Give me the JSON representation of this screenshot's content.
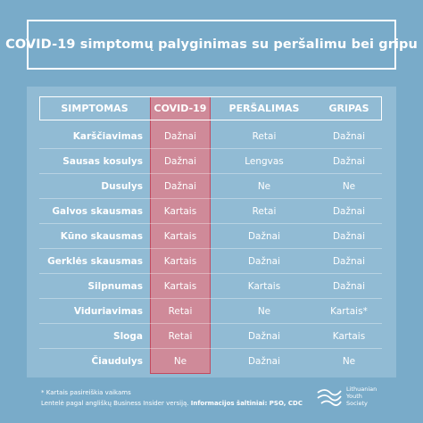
{
  "title": "COVID-19 simptomų palyginimas su peršalimu bei gripu",
  "table": {
    "headers": [
      "SIMPTOMAS",
      "COVID-19",
      "PERŠALIMAS",
      "GRIPAS"
    ],
    "rows": [
      {
        "symptom": "Karščiavimas",
        "covid": "Dažnai",
        "cold": "Retai",
        "flu": "Dažnai"
      },
      {
        "symptom": "Sausas kosulys",
        "covid": "Dažnai",
        "cold": "Lengvas",
        "flu": "Dažnai"
      },
      {
        "symptom": "Dusulys",
        "covid": "Dažnai",
        "cold": "Ne",
        "flu": "Ne"
      },
      {
        "symptom": "Galvos skausmas",
        "covid": "Kartais",
        "cold": "Retai",
        "flu": "Dažnai"
      },
      {
        "symptom": "Kūno skausmas",
        "covid": "Kartais",
        "cold": "Dažnai",
        "flu": "Dažnai"
      },
      {
        "symptom": "Gerklės skausmas",
        "covid": "Kartais",
        "cold": "Dažnai",
        "flu": "Dažnai"
      },
      {
        "symptom": "Silpnumas",
        "covid": "Kartais",
        "cold": "Kartais",
        "flu": "Dažnai"
      },
      {
        "symptom": "Viduriavimas",
        "covid": "Retai",
        "cold": "Ne",
        "flu": "Kartais*"
      },
      {
        "symptom": "Sloga",
        "covid": "Retai",
        "cold": "Dažnai",
        "flu": "Kartais"
      },
      {
        "symptom": "Čiaudulys",
        "covid": "Ne",
        "cold": "Dažnai",
        "flu": "Ne"
      }
    ]
  },
  "footnote": {
    "line1": "* Kartais pasireiškia vaikams",
    "line2_prefix": "Lentelė pagal angliškų Business Insider versiją. ",
    "line2_bold": "Informacijos šaltiniai: PSO, CDC"
  },
  "logo": {
    "icon": "lyd-wave-icon",
    "line1": "Lithuanian",
    "line2": "Youth",
    "line3": "Society"
  },
  "colors": {
    "background": "#79abc9",
    "panel": "#91bbd4",
    "covid_fill": "#cf8a99",
    "covid_border": "#c24a5f"
  }
}
